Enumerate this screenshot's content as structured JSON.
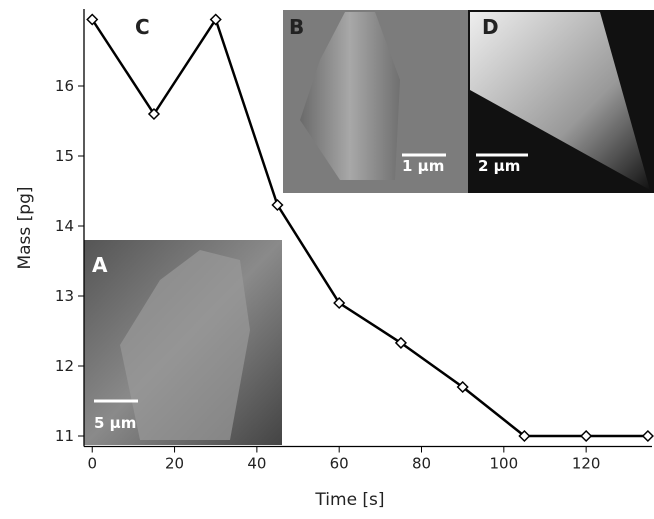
{
  "chart_data": {
    "type": "line",
    "x_label": "Time [s]",
    "y_label": "Mass [pg]",
    "x": [
      0,
      15,
      30,
      45,
      60,
      75,
      90,
      105,
      120,
      135
    ],
    "series": [
      {
        "color": "#000000",
        "values": [
          16.95,
          15.6,
          16.95,
          14.3,
          12.9,
          12.33,
          11.7,
          11.0,
          11.0,
          11.0
        ]
      }
    ],
    "xlim": [
      -2,
      136
    ],
    "ylim": [
      10.85,
      17.1
    ],
    "xticks": [
      0,
      20,
      40,
      60,
      80,
      100,
      120
    ],
    "yticks": [
      11,
      12,
      13,
      14,
      15,
      16
    ],
    "insets": [
      {
        "label": "A",
        "scale_bar": "5 µm"
      },
      {
        "label": "B",
        "scale_bar": "1 µm"
      },
      {
        "label": "C"
      },
      {
        "label": "D",
        "scale_bar": "2 µm"
      }
    ]
  }
}
